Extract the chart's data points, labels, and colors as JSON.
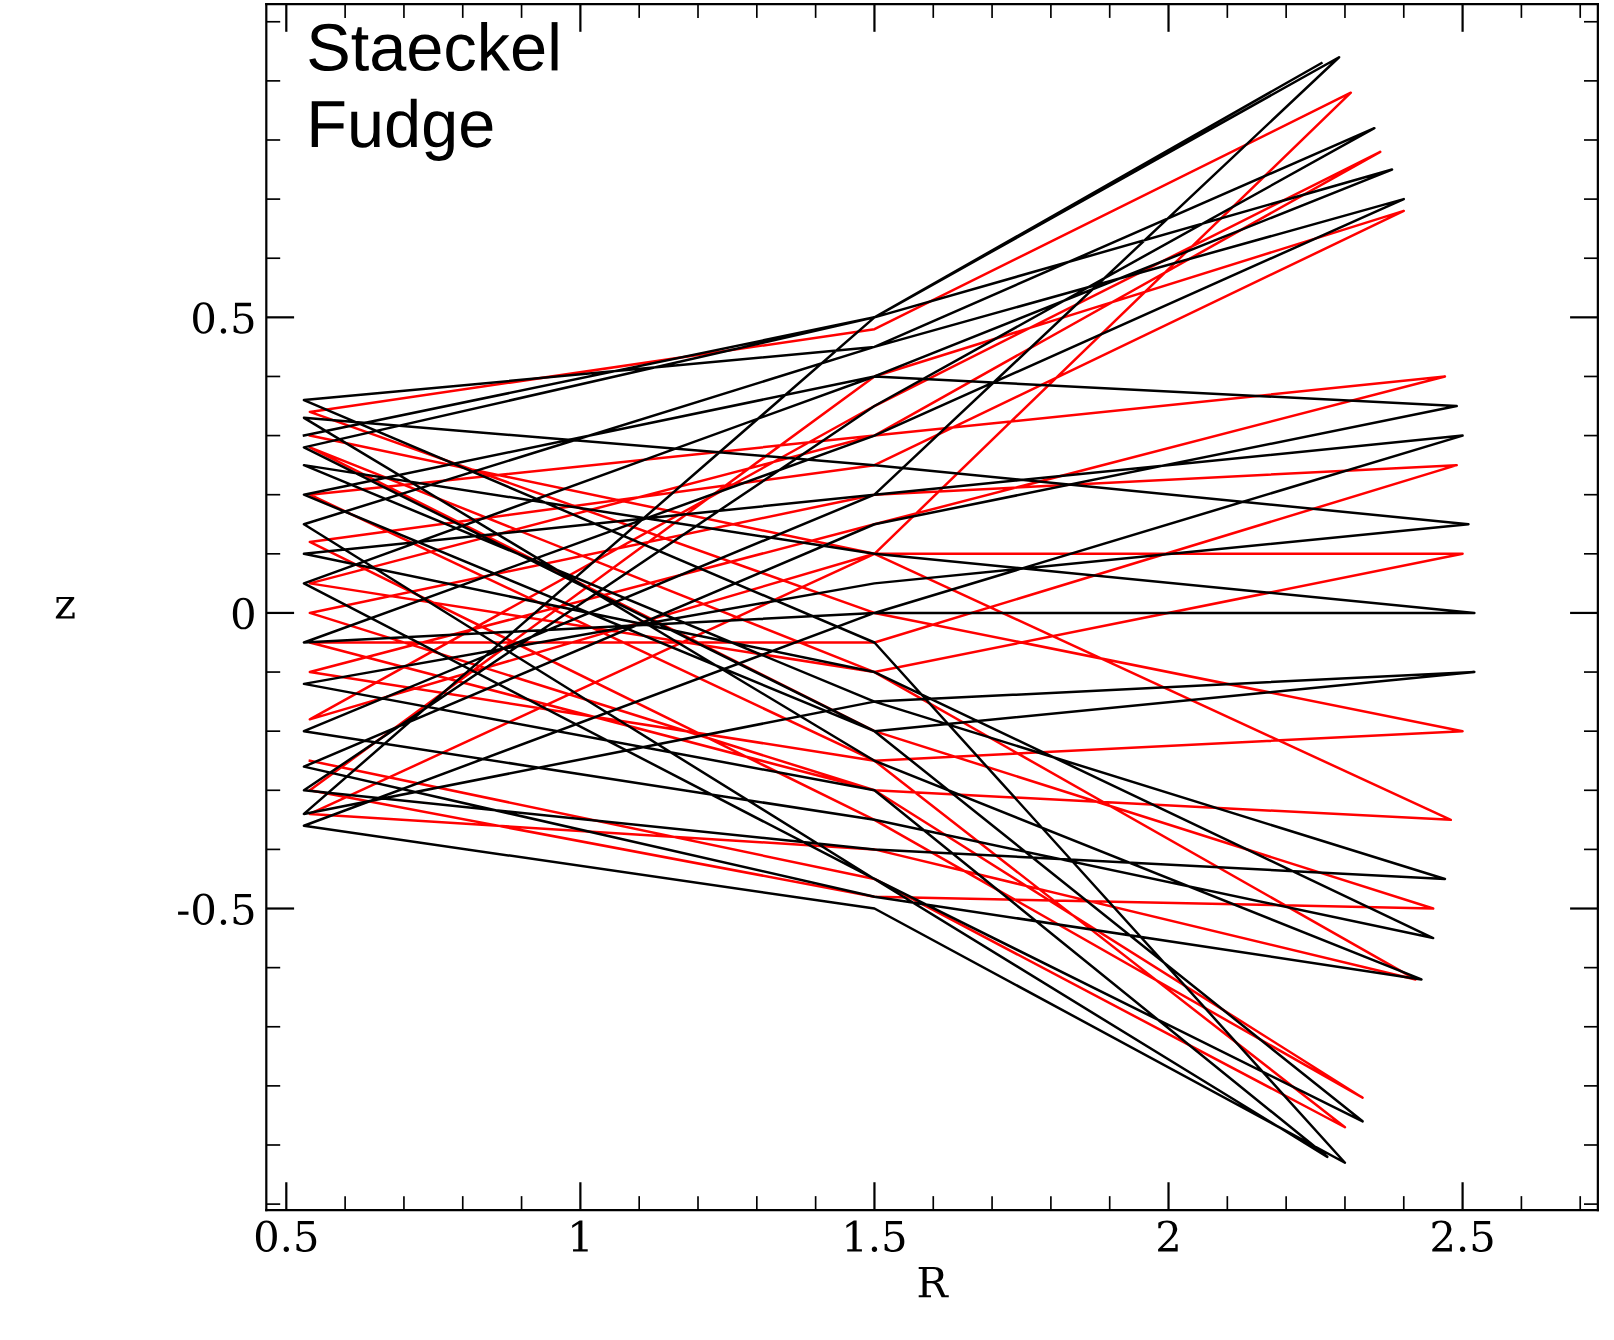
{
  "chart_data": {
    "type": "line",
    "xlabel": "R",
    "ylabel": "z",
    "annotations": [
      "Staeckel\nFudge"
    ],
    "xlim": [
      0.466,
      2.73
    ],
    "ylim": [
      -1.01,
      1.03
    ],
    "xticks": [
      0.5,
      1,
      1.5,
      2,
      2.5
    ],
    "yticks": [
      -0.5,
      0,
      0.5
    ],
    "grid": false,
    "legend": false,
    "marker": "none",
    "line_style": "solid",
    "series": [
      {
        "color": "#ff0000",
        "x": [
          0.54,
          1.5,
          2.3,
          1.5,
          0.54,
          1.5,
          2.47,
          1.5,
          0.54,
          1.5,
          2.5,
          1.5,
          0.54,
          1.5,
          2.31,
          1.5,
          0.54,
          1.5,
          2.42,
          1.5,
          0.54,
          1.5,
          2.36,
          1.5,
          0.54,
          1.5,
          2.5,
          1.5,
          0.54,
          1.5,
          2.45,
          1.5,
          0.54,
          1.5,
          2.4,
          1.5,
          0.54,
          1.5,
          2.33,
          1.5,
          0.54,
          1.5,
          2.49,
          1.5,
          0.54,
          1.5,
          2.48,
          1.5,
          0.54
        ],
        "values": [
          -0.25,
          -0.45,
          -0.87,
          -0.25,
          0.2,
          0.3,
          0.4,
          0.15,
          -0.1,
          -0.25,
          -0.2,
          0.0,
          0.34,
          0.48,
          0.88,
          0.1,
          -0.34,
          -0.4,
          -0.62,
          -0.1,
          0.05,
          0.3,
          0.78,
          0.35,
          -0.18,
          0.1,
          0.1,
          -0.1,
          0.28,
          -0.2,
          -0.5,
          -0.48,
          -0.3,
          0.4,
          0.68,
          0.25,
          0.12,
          -0.35,
          -0.82,
          -0.3,
          0.0,
          0.2,
          0.25,
          -0.05,
          -0.05,
          -0.3,
          -0.35,
          0.1,
          0.3
        ]
      },
      {
        "color": "#000000",
        "x": [
          0.53,
          1.5,
          2.29,
          1.5,
          0.53,
          1.5,
          2.45,
          1.5,
          0.53,
          1.5,
          2.5,
          1.5,
          0.53,
          1.5,
          2.3,
          1.5,
          0.53,
          1.5,
          2.4,
          1.5,
          0.53,
          1.5,
          2.52,
          1.5,
          0.53,
          1.5,
          2.47,
          1.5,
          0.53,
          1.5,
          2.35,
          1.5,
          0.53,
          1.5,
          2.27,
          1.5,
          0.53,
          1.5,
          2.51,
          1.5,
          0.53,
          1.5,
          2.43,
          1.5,
          0.53,
          1.5,
          2.49,
          1.5,
          0.53,
          1.5,
          2.33,
          1.5,
          0.53,
          1.5,
          2.38,
          1.5,
          0.53,
          1.5,
          2.52,
          1.5,
          0.53,
          1.5,
          2.26
        ],
        "values": [
          0.3,
          0.5,
          0.94,
          0.2,
          -0.2,
          -0.35,
          -0.55,
          -0.1,
          0.1,
          0.2,
          0.3,
          0.0,
          -0.36,
          -0.5,
          -0.93,
          -0.05,
          0.36,
          0.45,
          0.7,
          0.3,
          -0.05,
          0.0,
          0.0,
          0.1,
          0.25,
          -0.15,
          -0.45,
          -0.4,
          -0.3,
          0.35,
          0.82,
          0.45,
          0.15,
          -0.45,
          -0.92,
          -0.3,
          -0.12,
          0.05,
          0.15,
          0.25,
          0.33,
          -0.25,
          -0.62,
          -0.48,
          -0.26,
          0.15,
          0.35,
          0.4,
          0.05,
          -0.45,
          -0.86,
          -0.2,
          0.2,
          0.4,
          0.75,
          0.5,
          -0.34,
          -0.15,
          -0.1,
          -0.2,
          0.28,
          0.5,
          0.93
        ]
      }
    ]
  }
}
